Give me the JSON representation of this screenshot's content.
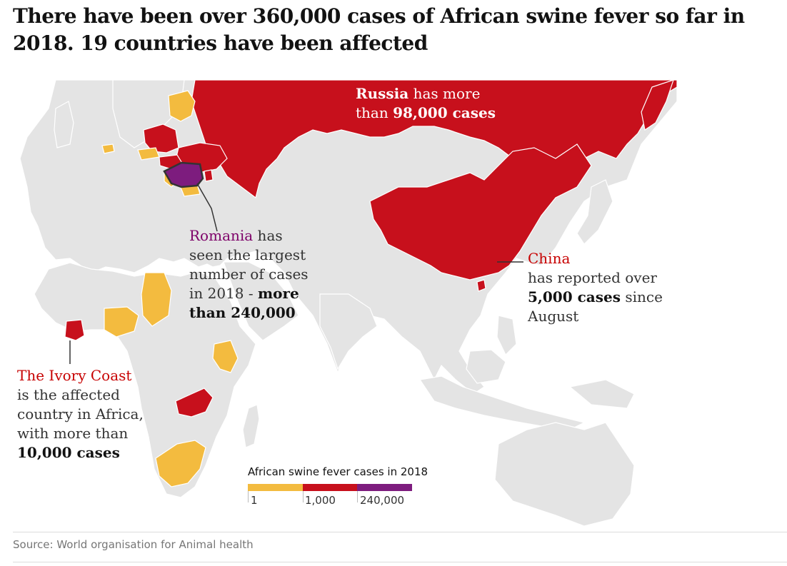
{
  "title": "There have been over 360,000 cases of African swine fever so far in 2018. 19 countries have been affected",
  "colors": {
    "land": "#e4e4e4",
    "water": "#ffffff",
    "low": "#f3bb3f",
    "mid": "#c7101c",
    "high": "#7d1c7e",
    "border": "#ffffff"
  },
  "annotations": {
    "russia": {
      "name": "Russia",
      "text1": " has more",
      "text2": "than ",
      "bold": "98,000 cases"
    },
    "romania": {
      "name": "Romania",
      "text1": " has",
      "line2": "seen the largest",
      "line3": "number of cases",
      "line4": "in 2018 - ",
      "bold1": "more",
      "bold2": "than 240,000"
    },
    "china": {
      "name": "China",
      "line2": "has reported over",
      "bold": "5,000 cases",
      "text3": " since",
      "line4": "August"
    },
    "ivory_coast": {
      "name": "The Ivory Coast",
      "line2": "is the affected",
      "line3": "country in Africa,",
      "line4": "with more than",
      "bold": "10,000 cases"
    }
  },
  "legend": {
    "title": "African swine fever cases in 2018",
    "ticks": [
      "1",
      "1,000",
      "240,000"
    ]
  },
  "source": "Source: World organisation for Animal health"
}
